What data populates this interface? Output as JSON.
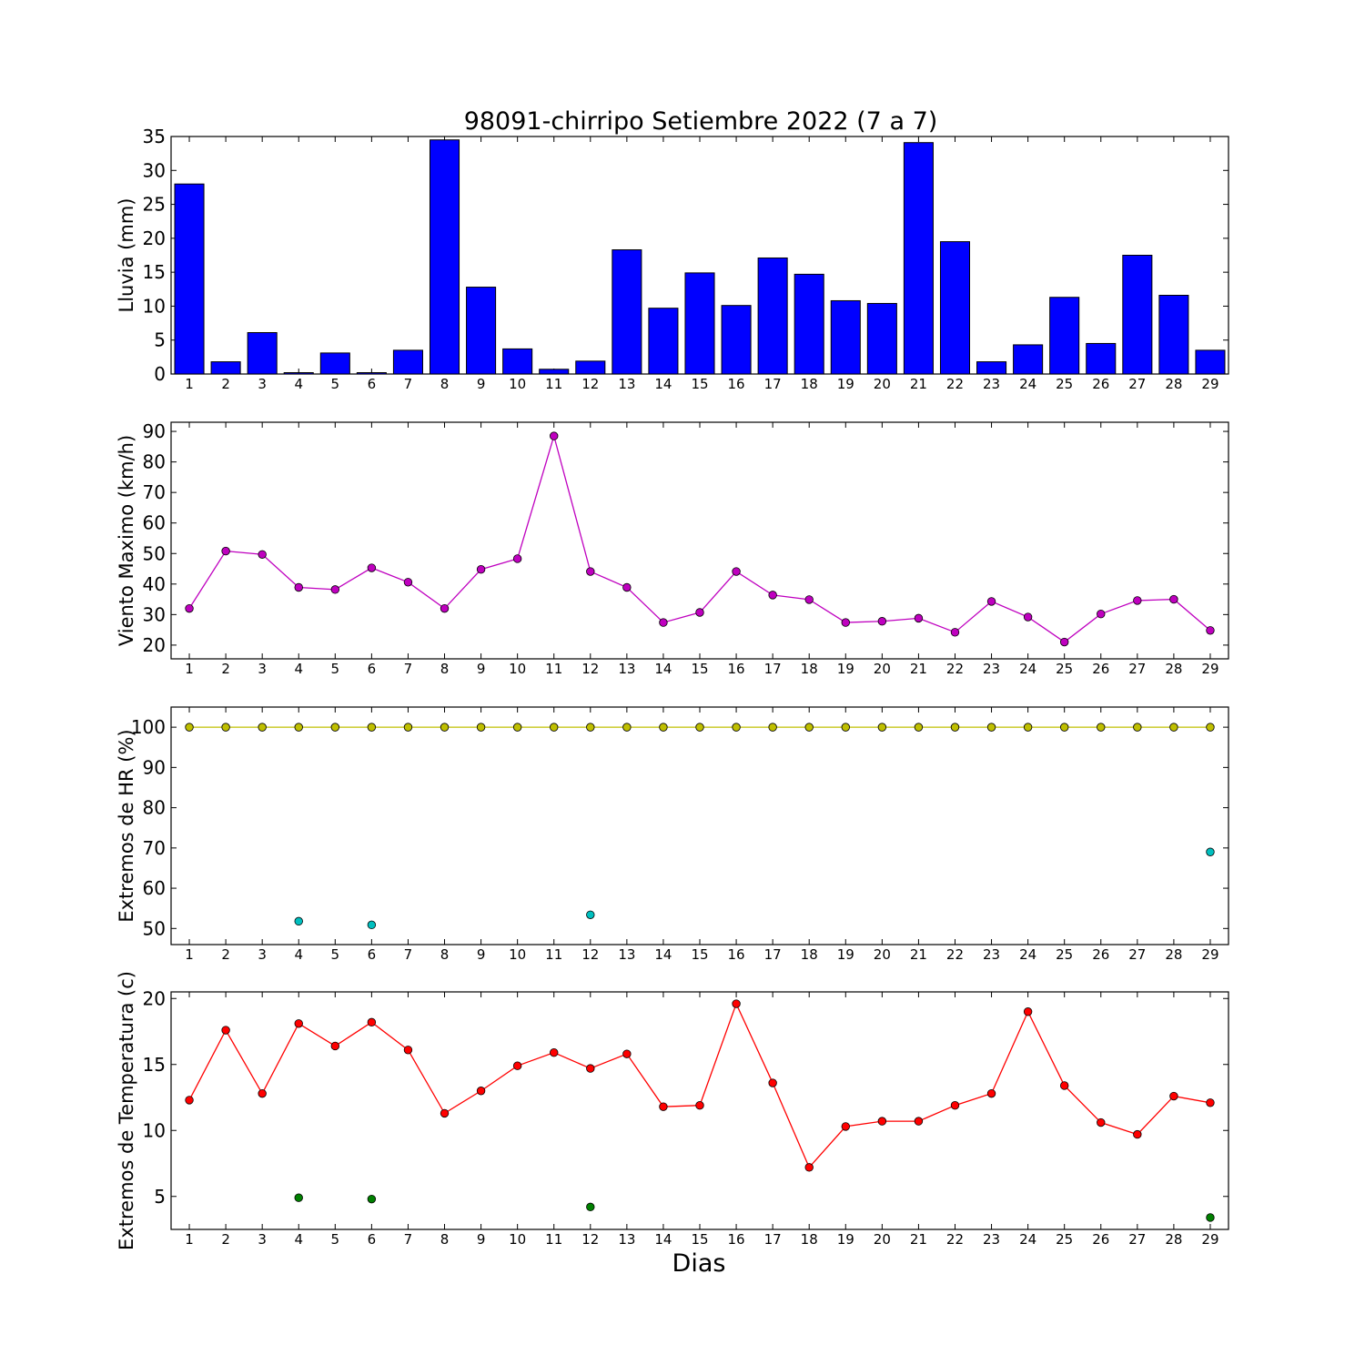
{
  "title": "98091-chirripo Setiembre 2022  (7 a 7)",
  "xlabel": "Dias",
  "chart_data": [
    {
      "type": "bar",
      "ylabel": "Lluvia (mm)",
      "ylim": [
        0,
        35
      ],
      "yticks": [
        0,
        5,
        10,
        15,
        20,
        25,
        30,
        35
      ],
      "x": [
        1,
        2,
        3,
        4,
        5,
        6,
        7,
        8,
        9,
        10,
        11,
        12,
        13,
        14,
        15,
        16,
        17,
        18,
        19,
        20,
        21,
        22,
        23,
        24,
        25,
        26,
        27,
        28,
        29
      ],
      "series": [
        {
          "color": "#0000ff",
          "values": [
            28.0,
            1.8,
            6.1,
            0.2,
            3.1,
            0.2,
            3.5,
            34.5,
            12.8,
            3.7,
            0.7,
            1.9,
            18.3,
            9.7,
            14.9,
            10.1,
            17.1,
            14.7,
            10.8,
            10.4,
            34.1,
            19.5,
            1.8,
            4.3,
            11.3,
            4.5,
            17.5,
            11.6,
            3.5
          ]
        }
      ]
    },
    {
      "type": "line",
      "ylabel": "Viento Maximo (km/h)",
      "ylim": [
        15.5,
        93
      ],
      "yticks": [
        20,
        30,
        40,
        50,
        60,
        70,
        80,
        90
      ],
      "x": [
        1,
        2,
        3,
        4,
        5,
        6,
        7,
        8,
        9,
        10,
        11,
        12,
        13,
        14,
        15,
        16,
        17,
        18,
        19,
        20,
        21,
        22,
        23,
        24,
        25,
        26,
        27,
        28,
        29
      ],
      "series": [
        {
          "color": "#bf00bf",
          "values": [
            32,
            50.8,
            49.7,
            38.9,
            38.2,
            45.3,
            40.6,
            32,
            44.8,
            48.3,
            88.5,
            44.1,
            38.9,
            27.4,
            30.7,
            44.1,
            36.4,
            34.9,
            27.4,
            27.8,
            28.8,
            24.2,
            34.3,
            29.2,
            21,
            30.2,
            34.6,
            35,
            24.8
          ]
        }
      ]
    },
    {
      "type": "scatter",
      "ylabel": "Extremos de HR (%)",
      "ylim": [
        46,
        105
      ],
      "yticks": [
        50,
        60,
        70,
        80,
        90,
        100
      ],
      "x": [
        1,
        2,
        3,
        4,
        5,
        6,
        7,
        8,
        9,
        10,
        11,
        12,
        13,
        14,
        15,
        16,
        17,
        18,
        19,
        20,
        21,
        22,
        23,
        24,
        25,
        26,
        27,
        28,
        29
      ],
      "series": [
        {
          "color": "#bfbf00",
          "line": true,
          "values": [
            100,
            100,
            100,
            100,
            100,
            100,
            100,
            100,
            100,
            100,
            100,
            100,
            100,
            100,
            100,
            100,
            100,
            100,
            100,
            100,
            100,
            100,
            100,
            100,
            100,
            100,
            100,
            100,
            100
          ]
        },
        {
          "color": "#00bfbf",
          "line": false,
          "points": [
            [
              4,
              51.8
            ],
            [
              6,
              50.9
            ],
            [
              12,
              53.4
            ],
            [
              29,
              69
            ]
          ]
        }
      ]
    },
    {
      "type": "line",
      "ylabel": "Extremos de Temperatura (c)",
      "ylim": [
        2.5,
        20.5
      ],
      "yticks": [
        5,
        10,
        15,
        20
      ],
      "x": [
        1,
        2,
        3,
        4,
        5,
        6,
        7,
        8,
        9,
        10,
        11,
        12,
        13,
        14,
        15,
        16,
        17,
        18,
        19,
        20,
        21,
        22,
        23,
        24,
        25,
        26,
        27,
        28,
        29
      ],
      "series": [
        {
          "color": "#ff0000",
          "line": true,
          "values": [
            12.3,
            17.6,
            12.8,
            18.1,
            16.4,
            18.2,
            16.1,
            11.3,
            13,
            14.9,
            15.9,
            14.7,
            15.8,
            11.8,
            11.9,
            19.6,
            13.6,
            7.2,
            10.3,
            10.7,
            10.7,
            11.9,
            12.8,
            19,
            13.4,
            10.6,
            9.7,
            12.6,
            12.1
          ]
        },
        {
          "color": "#008000",
          "line": false,
          "points": [
            [
              4,
              4.9
            ],
            [
              6,
              4.8
            ],
            [
              12,
              4.2
            ],
            [
              29,
              3.4
            ]
          ]
        }
      ]
    }
  ]
}
